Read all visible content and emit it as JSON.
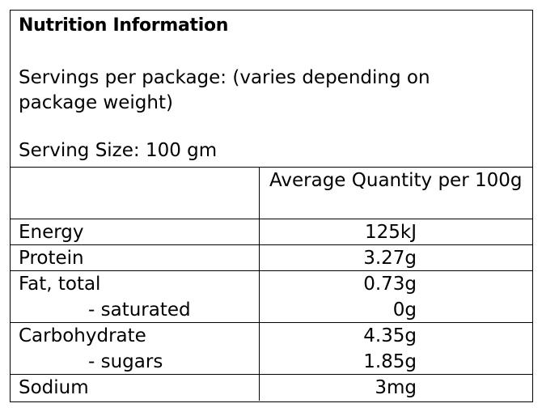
{
  "panel": {
    "title": "Nutrition Information",
    "servings": "Servings per package: (varies depending on package weight)",
    "serving_size": "Serving Size: 100 gm",
    "column_header": "Average Quantity per 100g"
  },
  "rows": [
    {
      "label": "Energy",
      "value": "125kJ"
    },
    {
      "label": "Protein",
      "value": "3.27g"
    },
    {
      "label": "Fat, total",
      "value": "0.73g"
    },
    {
      "label": "- saturated",
      "value": "0g"
    },
    {
      "label": "Carbohydrate",
      "value": "4.35g"
    },
    {
      "label": "- sugars",
      "value": "1.85g"
    },
    {
      "label": "Sodium",
      "value": "3mg"
    }
  ]
}
